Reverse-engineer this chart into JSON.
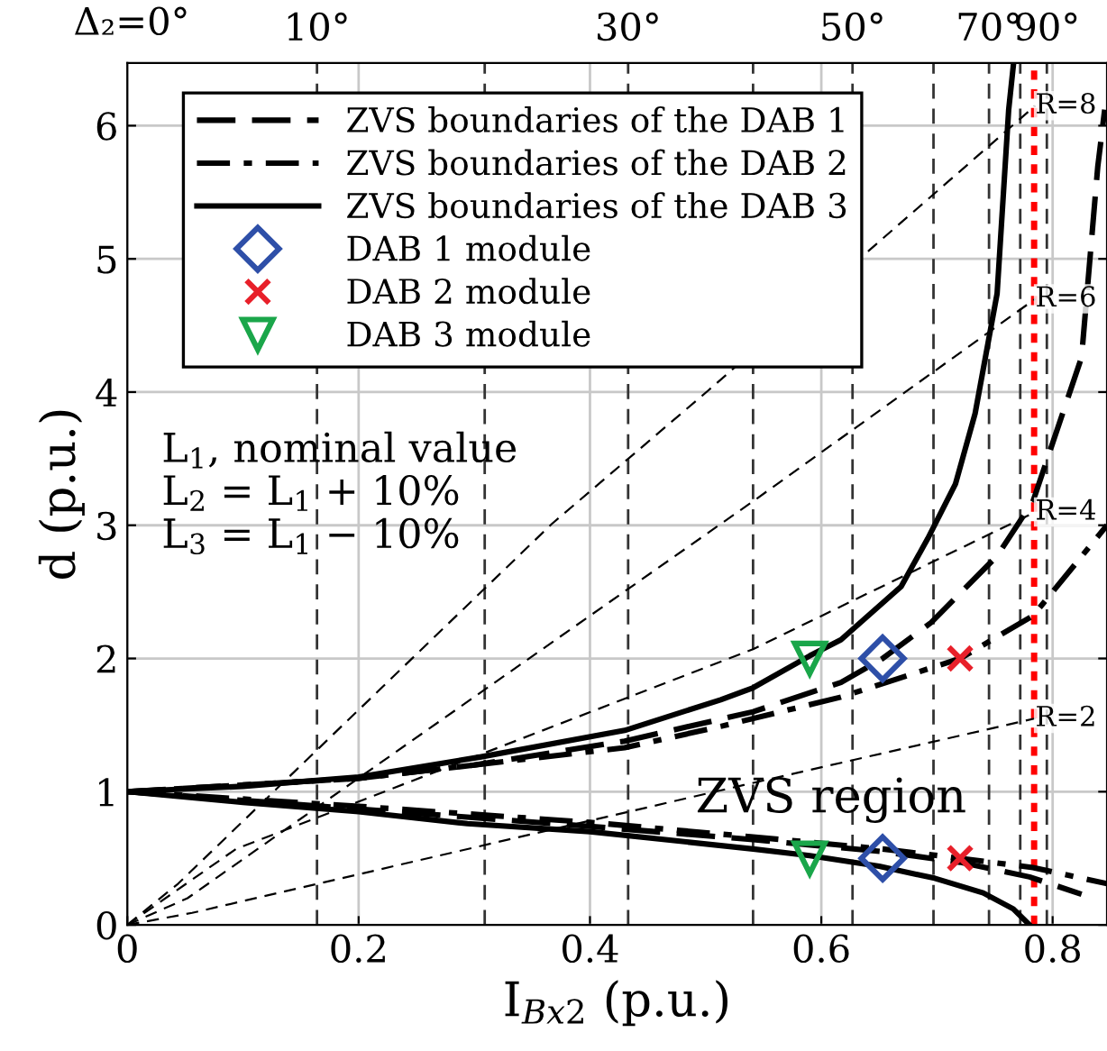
{
  "chart_data": {
    "type": "line",
    "xlabel": "I$_{Bx2}$ (p.u.)",
    "ylabel": "d (p.u.)",
    "xlim": [
      0,
      0.847
    ],
    "ylim": [
      0,
      6.47
    ],
    "xticks": [
      0,
      0.2,
      0.4,
      0.6,
      0.8
    ],
    "yticks": [
      0,
      1,
      2,
      3,
      4,
      5,
      6
    ],
    "grid": true,
    "legend": "top left",
    "series": [
      {
        "name": "ZVS boundaries of the DAB 1",
        "color": "#000000",
        "line_style": "longdash",
        "marker": "none",
        "x": [
          0,
          0.2,
          0.3,
          0.43,
          0.541,
          0.617,
          0.653,
          0.695,
          0.752,
          0.783,
          0.825,
          0.839,
          0.845
        ],
        "values": [
          1,
          1.1,
          1.2,
          1.38,
          1.6,
          1.82,
          2.0,
          2.27,
          2.77,
          3.18,
          4.26,
          5.69,
          6.12
        ]
      },
      {
        "color": "#000000",
        "line_style": "longdash",
        "marker": "none",
        "x": [
          0,
          0.2,
          0.4,
          0.541,
          0.653,
          0.72,
          0.78,
          0.825
        ],
        "values": [
          1,
          0.87,
          0.74,
          0.64,
          0.55,
          0.47,
          0.36,
          0.23
        ]
      },
      {
        "name": "ZVS boundaries of the DAB 2",
        "color": "#000000",
        "line_style": "dashdot",
        "marker": "none",
        "x": [
          0,
          0.2,
          0.3,
          0.43,
          0.513,
          0.617,
          0.72,
          0.783,
          0.847
        ],
        "values": [
          1,
          1.1,
          1.2,
          1.33,
          1.49,
          1.71,
          2.0,
          2.32,
          3.0
        ]
      },
      {
        "color": "#000000",
        "line_style": "dashdot",
        "marker": "none",
        "x": [
          0,
          0.2,
          0.4,
          0.541,
          0.653,
          0.72,
          0.783,
          0.847
        ],
        "values": [
          1,
          0.89,
          0.77,
          0.66,
          0.57,
          0.5,
          0.43,
          0.31
        ]
      },
      {
        "name": "ZVS boundaries of the DAB 3",
        "color": "#000000",
        "line_style": "solid",
        "marker": "none",
        "x": [
          0,
          0.1,
          0.2,
          0.305,
          0.43,
          0.513,
          0.541,
          0.59,
          0.617,
          0.669,
          0.692,
          0.716,
          0.733,
          0.752,
          0.762,
          0.766
        ],
        "values": [
          1,
          1.04,
          1.11,
          1.26,
          1.46,
          1.69,
          1.78,
          2.02,
          2.14,
          2.54,
          2.9,
          3.31,
          3.84,
          4.74,
          6.12,
          6.45
        ]
      },
      {
        "color": "#000000",
        "line_style": "solid",
        "marker": "none",
        "x": [
          0,
          0.1,
          0.2,
          0.294,
          0.4,
          0.541,
          0.59,
          0.65,
          0.698,
          0.74,
          0.766,
          0.78
        ],
        "values": [
          1,
          0.92,
          0.85,
          0.76,
          0.7,
          0.57,
          0.52,
          0.44,
          0.35,
          0.24,
          0.12,
          0
        ]
      },
      {
        "name": "DAB 1 module",
        "type": "scatter",
        "color": "#2e4fa8",
        "marker": "diamond",
        "x": [
          0.653,
          0.653
        ],
        "values": [
          2,
          0.5
        ]
      },
      {
        "name": "DAB 2 module",
        "type": "scatter",
        "color": "#e8202a",
        "marker": "cross",
        "x": [
          0.72,
          0.72
        ],
        "values": [
          2,
          0.5
        ]
      },
      {
        "name": "DAB 3 module",
        "type": "scatter",
        "color": "#1aa64a",
        "marker": "triangle",
        "x": [
          0.59,
          0.59
        ],
        "values": [
          2,
          0.5
        ]
      },
      {
        "color": "#000000",
        "line_style": "dashed",
        "marker": "none",
        "x": [
          0,
          0.044,
          0.367,
          0.502,
          0.785
        ],
        "values": [
          0,
          0.31,
          3.01,
          4.01,
          6.15
        ]
      },
      {
        "color": "#000000",
        "line_style": "dashed",
        "marker": "none",
        "x": [
          0,
          0.052,
          0.541,
          0.785
        ],
        "values": [
          0,
          0.2,
          3.18,
          4.7
        ]
      },
      {
        "color": "#000000",
        "line_style": "dashed",
        "marker": "none",
        "x": [
          0,
          0.094,
          0.541,
          0.785
        ],
        "values": [
          0,
          0.57,
          2.07,
          3.1
        ]
      },
      {
        "color": "#000000",
        "line_style": "dashed",
        "marker": "none",
        "x": [
          0,
          0.056,
          0.533,
          0.785
        ],
        "values": [
          0,
          0.09,
          1.05,
          1.55
        ]
      }
    ],
    "ref_lines": [
      {
        "axis": "x",
        "value": 0.164,
        "line_style": "dashed",
        "color": "#333333"
      },
      {
        "axis": "x",
        "value": 0.309,
        "line_style": "dashed",
        "color": "#333333"
      },
      {
        "axis": "x",
        "value": 0.433,
        "line_style": "dashed",
        "color": "#333333"
      },
      {
        "axis": "x",
        "value": 0.541,
        "line_style": "dashed",
        "color": "#333333"
      },
      {
        "axis": "x",
        "value": 0.627,
        "line_style": "dashed",
        "color": "#333333"
      },
      {
        "axis": "x",
        "value": 0.697,
        "line_style": "dashed",
        "color": "#333333"
      },
      {
        "axis": "x",
        "value": 0.745,
        "line_style": "dashed",
        "color": "#333333"
      },
      {
        "axis": "x",
        "value": 0.772,
        "line_style": "dashed",
        "color": "#333333"
      },
      {
        "axis": "x",
        "value": 0.795,
        "line_style": "dashed",
        "color": "#333333"
      },
      {
        "axis": "x",
        "value": 0.784,
        "line_style": "dotted",
        "color": "#ff0000"
      }
    ],
    "annotations": [
      "Δ₂=0°",
      {
        "text": "10°",
        "x": 0.164,
        "y": 6.47
      },
      {
        "text": "30°",
        "x": 0.433,
        "y": 6.47
      },
      {
        "text": "50°",
        "x": 0.627,
        "y": 6.47
      },
      {
        "text": "70°",
        "x": 0.745,
        "y": 6.47
      },
      {
        "text": "90°",
        "x": 0.795,
        "y": 6.47
      },
      {
        "text": "R=8",
        "x": 0.785,
        "y": 6.15
      },
      {
        "text": "R=6",
        "x": 0.785,
        "y": 4.7
      },
      {
        "text": "R=4",
        "x": 0.785,
        "y": 3.1
      },
      {
        "text": "R=2",
        "x": 0.785,
        "y": 1.55
      },
      "L$_{1}$, nominal value",
      "L$_{2}$ = L$_{1}$ + 10%",
      "L$_{3}$ = L$_{1}$ − 10%",
      "ZVS region"
    ]
  }
}
